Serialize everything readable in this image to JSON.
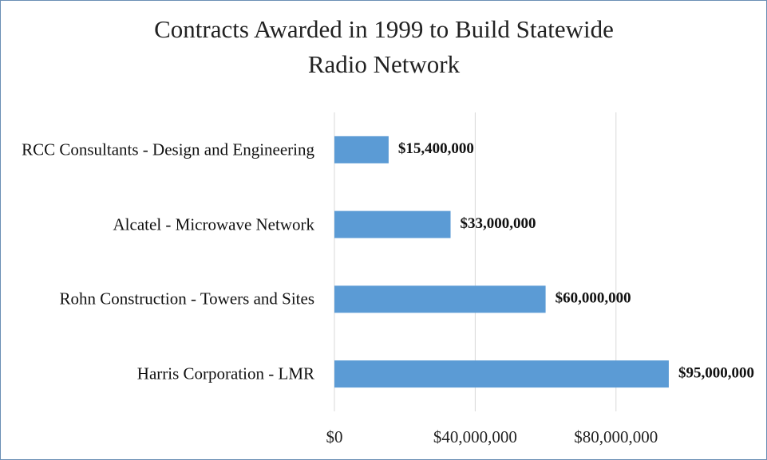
{
  "chart_data": {
    "type": "hbar",
    "title": "Contracts Awarded in 1999 to Build Statewide Radio Network",
    "categories": [
      "RCC Consultants - Design and Engineering",
      "Alcatel - Microwave Network",
      "Rohn Construction - Towers and Sites",
      "Harris Corporation - LMR"
    ],
    "values": [
      15400000,
      33000000,
      60000000,
      95000000
    ],
    "value_labels": [
      "$15,400,000",
      "$33,000,000",
      "$60,000,000",
      "$95,000,000"
    ],
    "color": "#5b9bd5",
    "xlim": [
      0,
      100000000
    ],
    "xticks": [
      {
        "value": 0,
        "label": "$0"
      },
      {
        "value": 40000000,
        "label": "$40,000,000"
      },
      {
        "value": 80000000,
        "label": "$80,000,000"
      }
    ],
    "grid": true
  }
}
